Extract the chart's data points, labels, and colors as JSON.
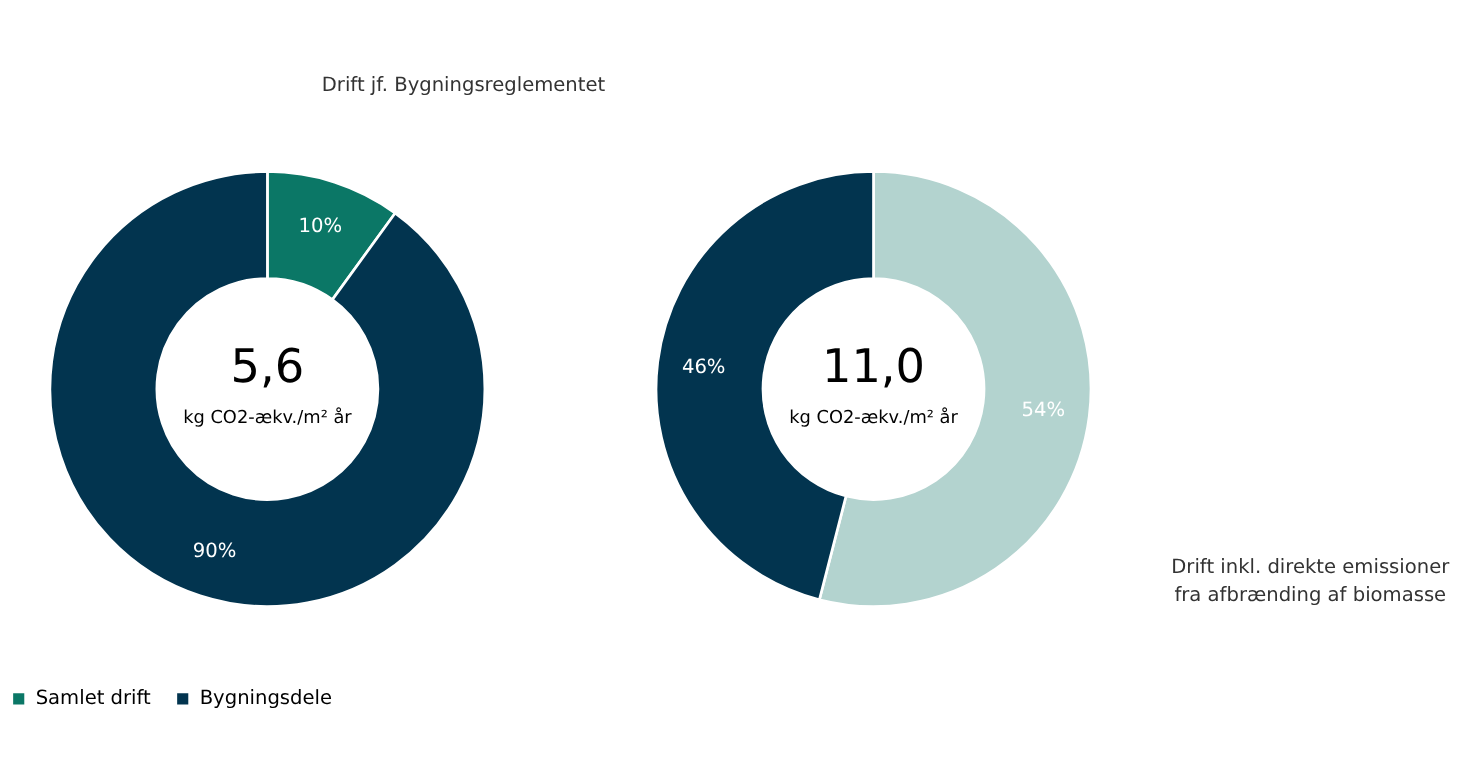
{
  "chart_data": [
    {
      "type": "donut",
      "categories": [
        "Samlet drift",
        "Bygningsdele"
      ],
      "values": [
        10,
        90
      ],
      "value_labels": [
        "10%",
        "90%"
      ],
      "colors": [
        "#0b7766",
        "#02344f"
      ],
      "legend": "bottom",
      "annotations": [
        "5,6",
        "kg CO2-ækv./m² år",
        "Drift jf. Bygningsreglementet"
      ]
    },
    {
      "type": "donut",
      "categories": [
        null,
        null
      ],
      "values": [
        54,
        46
      ],
      "value_labels": [
        "54%",
        "46%"
      ],
      "colors": [
        "#b3d3cf",
        "#02344f"
      ],
      "annotations": [
        "11,0",
        "kg CO2-ækv./m² år",
        "Drift inkl. direkte emissioner fra afbrænding af biomasse"
      ]
    }
  ]
}
